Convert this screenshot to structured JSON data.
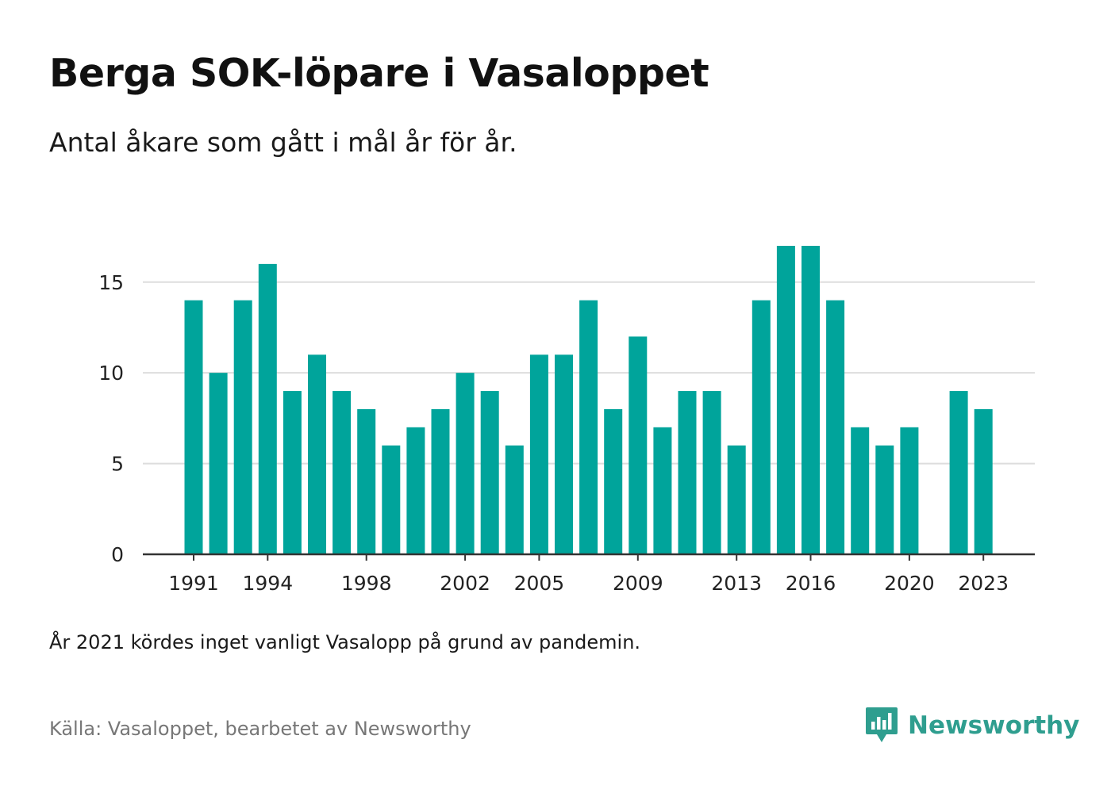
{
  "title": "Berga SOK-löpare i Vasaloppet",
  "subtitle": "Antal åkare som gått i mål år för år.",
  "note": "År 2021 kördes inget vanligt Vasalopp på grund av pandemin.",
  "source": "Källa: Vasaloppet, bearbetet av Newsworthy",
  "brand": {
    "name": "Newsworthy",
    "icon": "newsworthy-logo-icon"
  },
  "colors": {
    "bar": "#00a49b",
    "grid": "#dddddd",
    "axis": "#333333",
    "brand": "#2f9e8f"
  },
  "chart_data": {
    "type": "bar",
    "title": "Berga SOK-löpare i Vasaloppet",
    "xlabel": "",
    "ylabel": "",
    "categories": [
      1991,
      1992,
      1993,
      1994,
      1995,
      1996,
      1997,
      1998,
      1999,
      2000,
      2001,
      2002,
      2003,
      2004,
      2005,
      2006,
      2007,
      2008,
      2009,
      2010,
      2011,
      2012,
      2013,
      2014,
      2015,
      2016,
      2017,
      2018,
      2019,
      2020,
      2021,
      2022,
      2023
    ],
    "values": [
      14,
      10,
      14,
      16,
      9,
      11,
      9,
      8,
      6,
      7,
      8,
      10,
      9,
      6,
      11,
      11,
      14,
      8,
      12,
      7,
      9,
      9,
      6,
      14,
      17,
      17,
      14,
      7,
      6,
      7,
      null,
      9,
      8
    ],
    "x_ticks": [
      1991,
      1994,
      1998,
      2002,
      2005,
      2009,
      2013,
      2016,
      2020,
      2023
    ],
    "y_ticks": [
      0,
      5,
      10,
      15
    ],
    "ylim": [
      0,
      17
    ],
    "grid": true,
    "legend": "none"
  }
}
